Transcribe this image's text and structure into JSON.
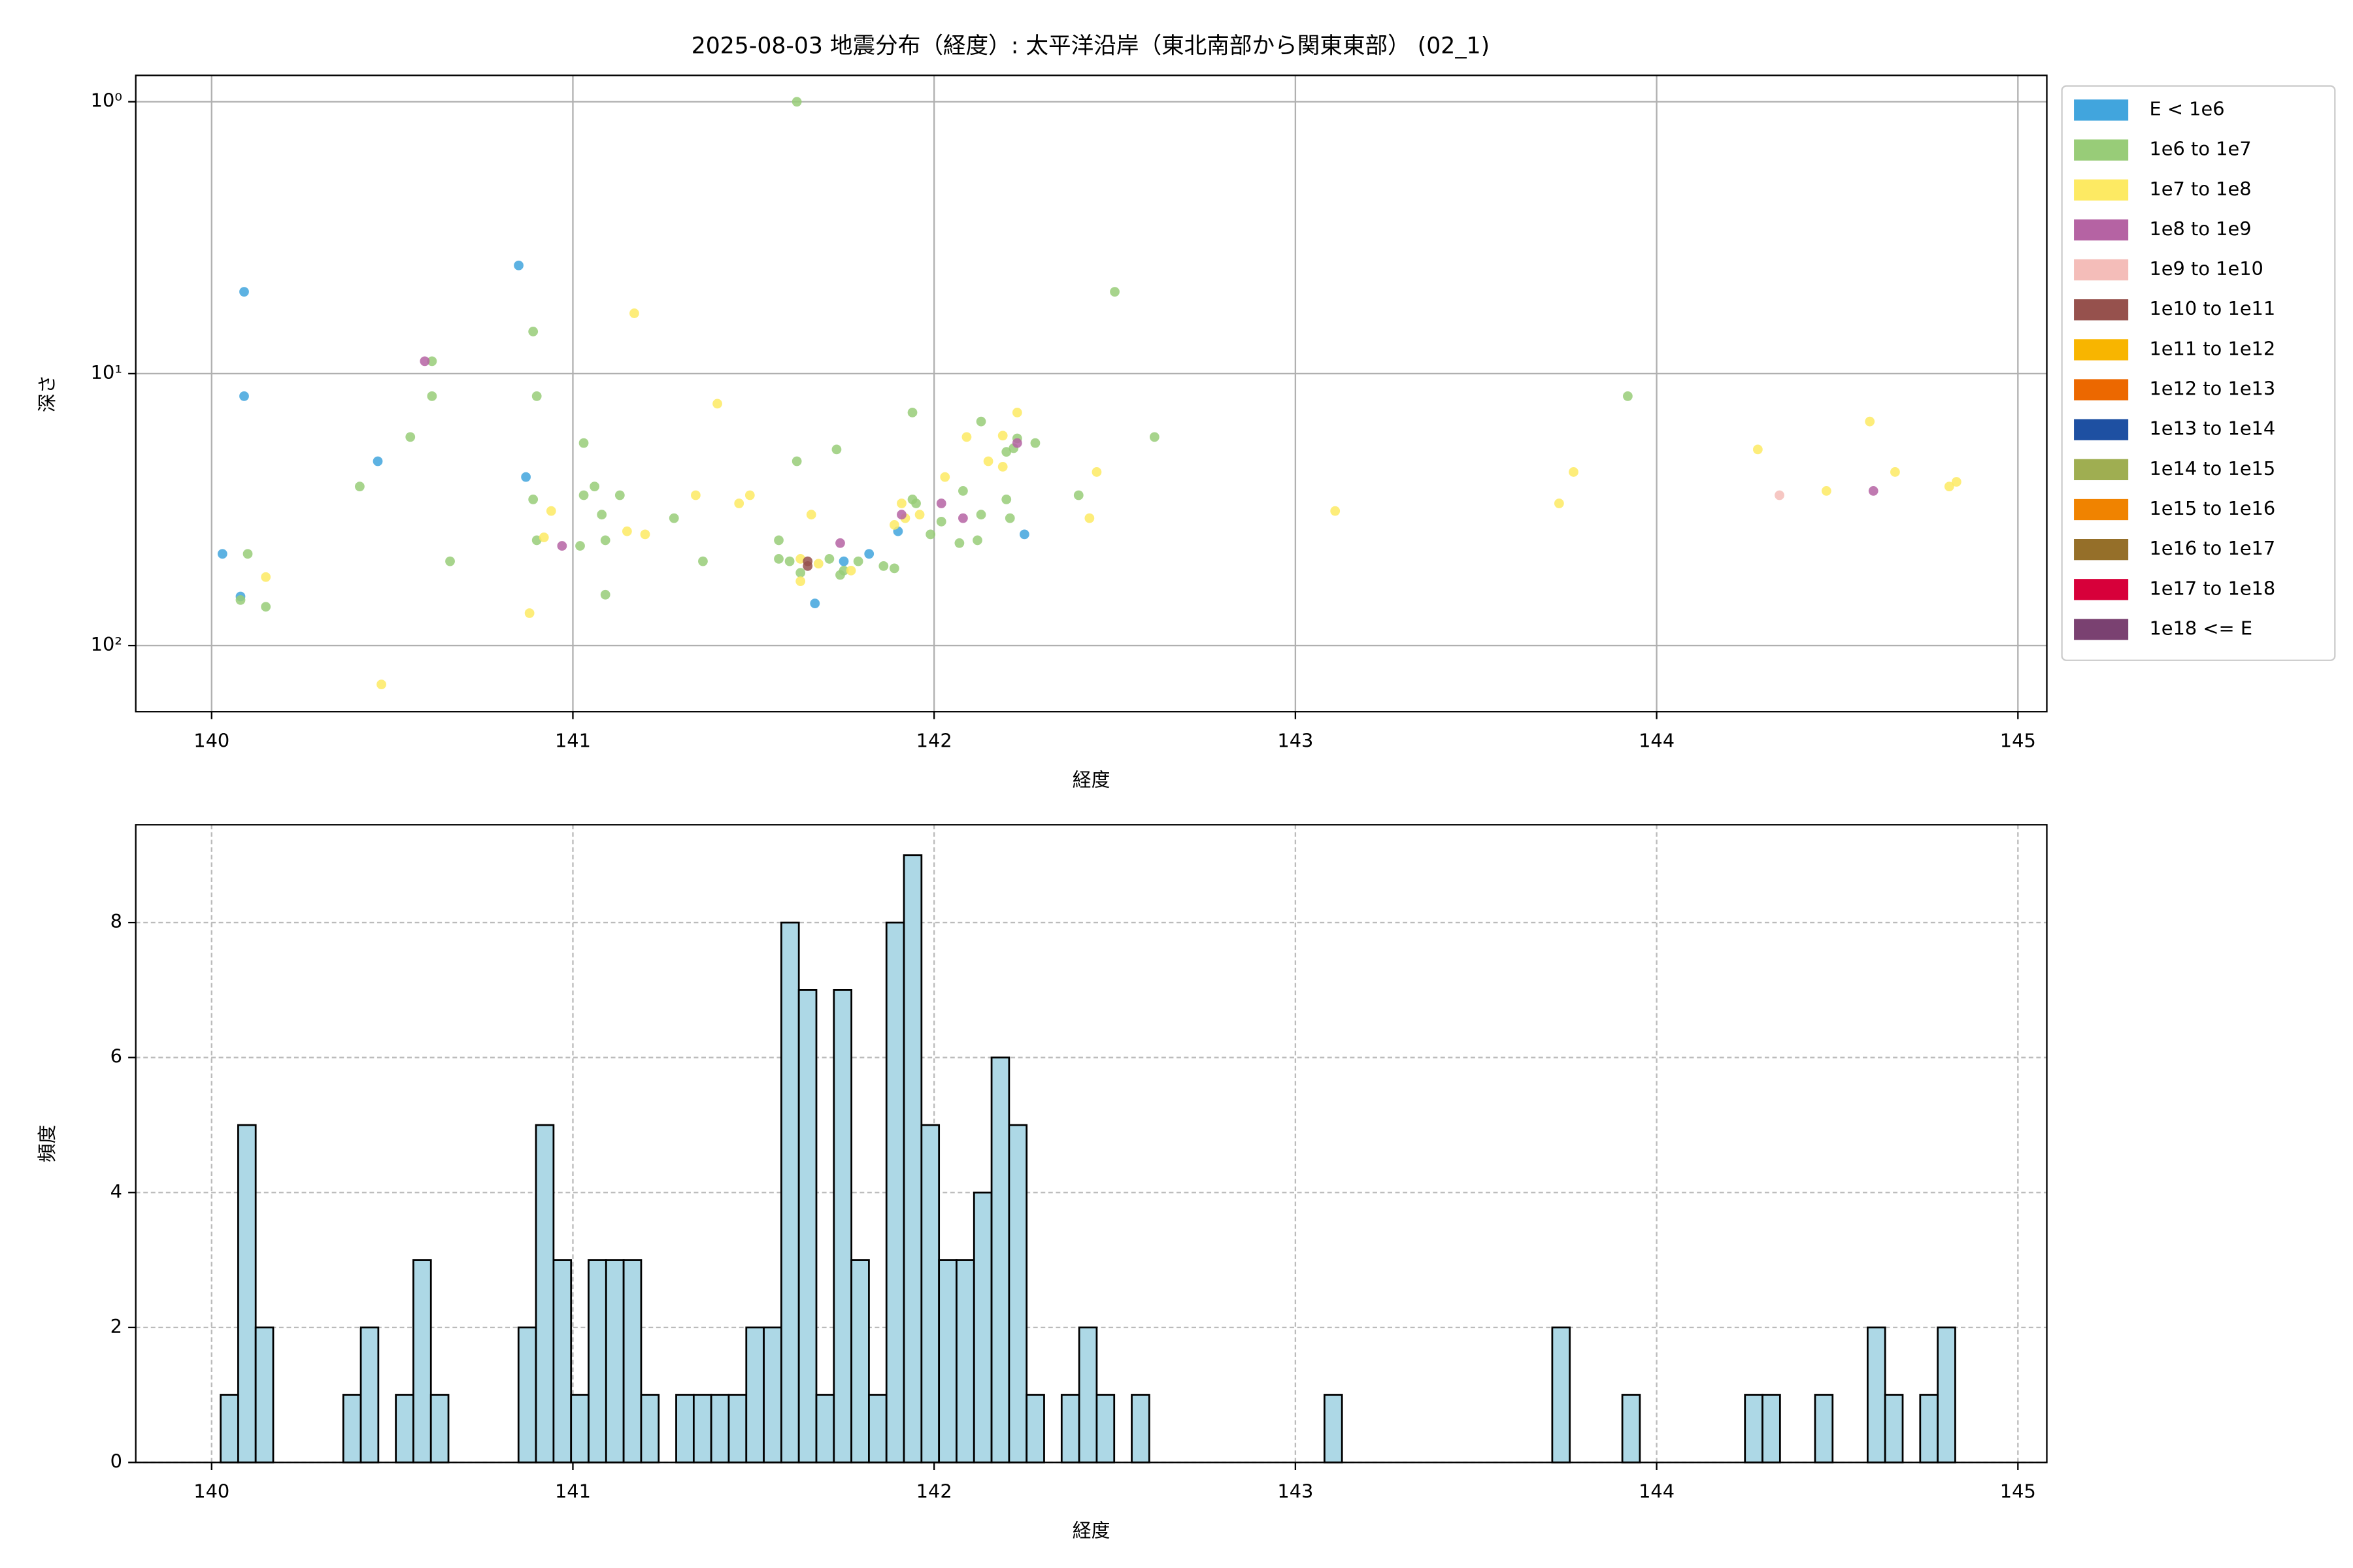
{
  "chart_data": [
    {
      "type": "scatter",
      "title": "2025-08-03 地震分布（経度）: 太平洋沿岸（東北南部から関東東部） (02_1)",
      "xlabel": "経度",
      "ylabel": "深さ",
      "xlim": [
        139.79,
        145.08
      ],
      "xticks": [
        140,
        141,
        142,
        143,
        144,
        145
      ],
      "ylim": [
        0.8,
        175
      ],
      "yscale": "log",
      "y_inverted": true,
      "yticks": [
        {
          "value": 1,
          "label": "10⁰"
        },
        {
          "value": 10,
          "label": "10¹"
        },
        {
          "value": 100,
          "label": "10²"
        }
      ],
      "grid": true,
      "grid_style": "solid",
      "legend": "outside right",
      "series": [
        {
          "name": "E < 1e6",
          "color": "#41a5dd",
          "x": [
            140.09,
            140.09,
            140.03,
            140.08,
            140.46,
            140.85,
            140.87,
            141.67,
            141.75,
            141.82,
            141.9,
            142.25
          ],
          "values": [
            5.0,
            12.1,
            46,
            66,
            21,
            4.0,
            24,
            70,
            49,
            46,
            38,
            39
          ]
        },
        {
          "name": "1e6 to 1e7",
          "color": "#98cc78",
          "x": [
            141.62,
            142.5,
            140.89,
            140.61,
            140.9,
            140.61,
            140.55,
            141.03,
            140.41,
            141.06,
            141.03,
            141.13,
            140.89,
            141.08,
            140.9,
            141.09,
            141.02,
            140.66,
            140.1,
            140.08,
            140.15,
            141.09,
            141.94,
            142.13,
            142.61,
            142.28,
            142.22,
            142.23,
            141.73,
            141.62,
            142.2,
            142.08,
            142.4,
            142.2,
            141.94,
            141.95,
            142.13,
            142.02,
            142.21,
            141.99,
            142.07,
            142.12,
            141.57,
            141.36,
            141.57,
            141.6,
            141.71,
            141.79,
            141.86,
            141.89,
            141.63,
            141.74,
            141.75,
            141.28,
            143.92
          ],
          "values": [
            1.0,
            5.0,
            7.0,
            9.0,
            12.1,
            12.1,
            17.1,
            18.0,
            26,
            26,
            28,
            28,
            29,
            33,
            41,
            41,
            43,
            49,
            46,
            68,
            72,
            65,
            13.9,
            15.0,
            17.1,
            18.0,
            18.8,
            17.3,
            19.0,
            21,
            19.4,
            27,
            28,
            29,
            29,
            30,
            33,
            35,
            34,
            39,
            42,
            41,
            41,
            49,
            48,
            49,
            48,
            49,
            51,
            52,
            54,
            55,
            53,
            34,
            12.1
          ]
        },
        {
          "name": "1e7 to 1e8",
          "color": "#fdea63",
          "x": [
            141.17,
            141.4,
            142.23,
            142.09,
            142.19,
            142.15,
            142.19,
            142.45,
            142.03,
            141.34,
            141.49,
            141.46,
            140.94,
            141.91,
            141.96,
            141.92,
            141.89,
            141.66,
            142.43,
            141.15,
            141.2,
            140.92,
            141.63,
            141.68,
            141.77,
            141.63,
            140.15,
            140.88,
            140.47,
            143.11,
            143.77,
            143.73,
            144.28,
            144.47,
            144.59,
            144.66,
            144.81,
            144.83
          ],
          "values": [
            6.0,
            12.9,
            13.9,
            17.1,
            16.9,
            21,
            22,
            23,
            24,
            28,
            28,
            30,
            32,
            30,
            33,
            34,
            36,
            33,
            34,
            38,
            39,
            40,
            48,
            50,
            53,
            58,
            56,
            76,
            139,
            32,
            23,
            30,
            19,
            27,
            15,
            23,
            26,
            25
          ]
        },
        {
          "name": "1e8 to 1e9",
          "color": "#b563a3",
          "x": [
            140.59,
            142.23,
            142.02,
            141.91,
            142.08,
            141.74,
            140.97,
            144.6
          ],
          "values": [
            9.0,
            18.0,
            30,
            33,
            34,
            42,
            43,
            27
          ]
        },
        {
          "name": "1e9 to 1e10",
          "color": "#f4bdb9",
          "x": [
            144.34
          ],
          "values": [
            28
          ]
        },
        {
          "name": "1e10 to 1e11",
          "color": "#96514d",
          "x": [
            141.65,
            141.65
          ],
          "values": [
            49,
            51
          ]
        },
        {
          "name": "1e11 to 1e12",
          "color": "#f8b500",
          "x": [],
          "values": []
        },
        {
          "name": "1e12 to 1e13",
          "color": "#ec6800",
          "x": [],
          "values": []
        },
        {
          "name": "1e13 to 1e14",
          "color": "#1e50a2",
          "x": [],
          "values": []
        },
        {
          "name": "1e14 to 1e15",
          "color": "#9fae51",
          "x": [],
          "values": []
        },
        {
          "name": "1e15 to 1e16",
          "color": "#f08300",
          "x": [],
          "values": []
        },
        {
          "name": "1e16 to 1e17",
          "color": "#956f29",
          "x": [],
          "values": []
        },
        {
          "name": "1e17 to 1e18",
          "color": "#d7003a",
          "x": [],
          "values": []
        },
        {
          "name": "1e18 <= E",
          "color": "#7a4171",
          "x": [],
          "values": []
        }
      ]
    },
    {
      "type": "histogram",
      "xlabel": "経度",
      "ylabel": "頻度",
      "xlim": [
        139.79,
        145.08
      ],
      "xticks": [
        140,
        141,
        142,
        143,
        144,
        145
      ],
      "ylim": [
        0,
        9.45
      ],
      "yticks": [
        0,
        2,
        4,
        6,
        8
      ],
      "grid": true,
      "grid_style": "dashed",
      "color": "#add8e6",
      "edgecolor": "#000000",
      "bins": [
        140.025,
        140.0735,
        140.122,
        140.1705,
        140.219,
        140.2675,
        140.316,
        140.3645,
        140.413,
        140.4615,
        140.51,
        140.5585,
        140.607,
        140.6555,
        140.704,
        140.7525,
        140.801,
        140.8495,
        140.898,
        140.9465,
        140.995,
        141.0435,
        141.092,
        141.1405,
        141.189,
        141.2375,
        141.286,
        141.3345,
        141.383,
        141.4315,
        141.48,
        141.5285,
        141.577,
        141.6255,
        141.674,
        141.7225,
        141.771,
        141.8195,
        141.868,
        141.9165,
        141.965,
        142.0135,
        142.062,
        142.1105,
        142.159,
        142.2075,
        142.256,
        142.3045,
        142.353,
        142.4015,
        142.45,
        142.4985,
        142.547,
        142.5955,
        142.644,
        142.6925,
        142.741,
        142.7895,
        142.838,
        142.8865,
        142.935,
        142.9835,
        143.032,
        143.0805,
        143.129,
        143.1775,
        143.226,
        143.2745,
        143.323,
        143.3715,
        143.42,
        143.4685,
        143.517,
        143.5655,
        143.614,
        143.6625,
        143.711,
        143.7595,
        143.808,
        143.8565,
        143.905,
        143.9535,
        144.002,
        144.0505,
        144.099,
        144.1475,
        144.196,
        144.2445,
        144.293,
        144.3415,
        144.39,
        144.4385,
        144.487,
        144.5355,
        144.584,
        144.6325,
        144.681,
        144.7295,
        144.778,
        144.8265
      ],
      "values": [
        1,
        5,
        2,
        0,
        0,
        0,
        0,
        1,
        2,
        0,
        1,
        3,
        1,
        0,
        0,
        0,
        0,
        2,
        5,
        3,
        1,
        3,
        3,
        3,
        1,
        0,
        1,
        1,
        1,
        1,
        2,
        2,
        8,
        7,
        1,
        7,
        3,
        1,
        8,
        9,
        5,
        3,
        3,
        4,
        6,
        5,
        1,
        0,
        1,
        2,
        1,
        0,
        1,
        0,
        0,
        0,
        0,
        0,
        0,
        0,
        0,
        0,
        0,
        1,
        0,
        0,
        0,
        0,
        0,
        0,
        0,
        0,
        0,
        0,
        0,
        0,
        2,
        0,
        0,
        0,
        1,
        0,
        0,
        0,
        0,
        0,
        0,
        1,
        1,
        0,
        0,
        1,
        0,
        0,
        2,
        1,
        0,
        1,
        2
      ]
    }
  ]
}
